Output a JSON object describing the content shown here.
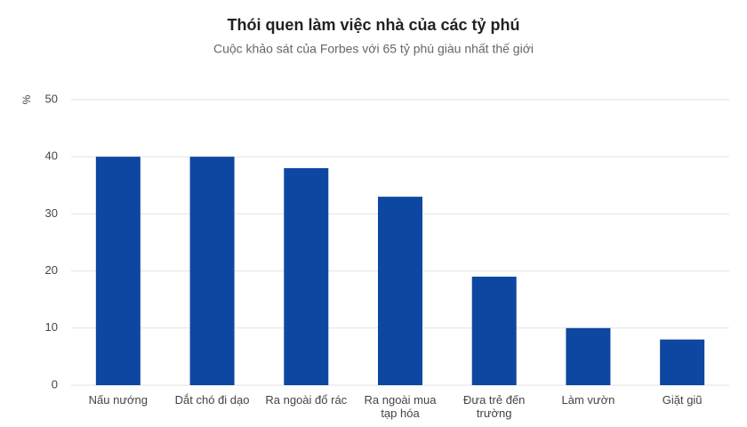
{
  "chart_data": {
    "type": "bar",
    "title": "Thói quen làm việc nhà của các tỷ phú",
    "subtitle": "Cuộc khảo sát của Forbes với 65 tỷ phú giàu nhất thế giới",
    "y_label": "%",
    "categories": [
      "Nấu nướng",
      "Dắt chó đi dạo",
      "Ra ngoài đổ rác",
      "Ra ngoài mua tạp hóa",
      "Đưa trẻ đến trường",
      "Làm vườn",
      "Giặt giũ"
    ],
    "values": [
      40,
      40,
      38,
      33,
      19,
      10,
      8
    ],
    "color": "#0d47a1",
    "ylim": [
      0,
      50
    ],
    "yticks": [
      0,
      10,
      20,
      30,
      40,
      50
    ],
    "grid": true
  }
}
